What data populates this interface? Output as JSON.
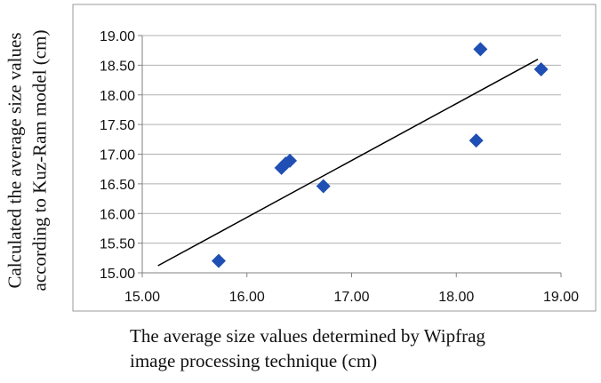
{
  "chart_data": {
    "type": "scatter",
    "xlabel_lines": [
      "The average size values determined by Wipfrag",
      "image processing technique (cm)"
    ],
    "ylabel_lines": [
      "Calculated the average size values",
      "according to Kuz-Ram model (cm)"
    ],
    "xlim": [
      15.0,
      19.0
    ],
    "ylim": [
      15.0,
      19.0
    ],
    "x_ticks": [
      "15.00",
      "16.00",
      "17.00",
      "18.00",
      "19.00"
    ],
    "y_ticks": [
      "15.00",
      "15.50",
      "16.00",
      "16.50",
      "17.00",
      "17.50",
      "18.00",
      "18.50",
      "19.00"
    ],
    "grid": "horizontal",
    "marker_color": "#1f4fb4",
    "series": [
      {
        "marker": "diamond",
        "points": [
          {
            "x": 15.73,
            "y": 15.2
          },
          {
            "x": 16.33,
            "y": 16.77
          },
          {
            "x": 16.37,
            "y": 16.84
          },
          {
            "x": 16.41,
            "y": 16.89
          },
          {
            "x": 16.73,
            "y": 16.46
          },
          {
            "x": 18.19,
            "y": 17.23
          },
          {
            "x": 18.23,
            "y": 18.77
          },
          {
            "x": 18.81,
            "y": 18.43
          }
        ]
      }
    ],
    "trendline": {
      "x": [
        15.15,
        18.78
      ],
      "y": [
        15.12,
        18.6
      ]
    }
  }
}
